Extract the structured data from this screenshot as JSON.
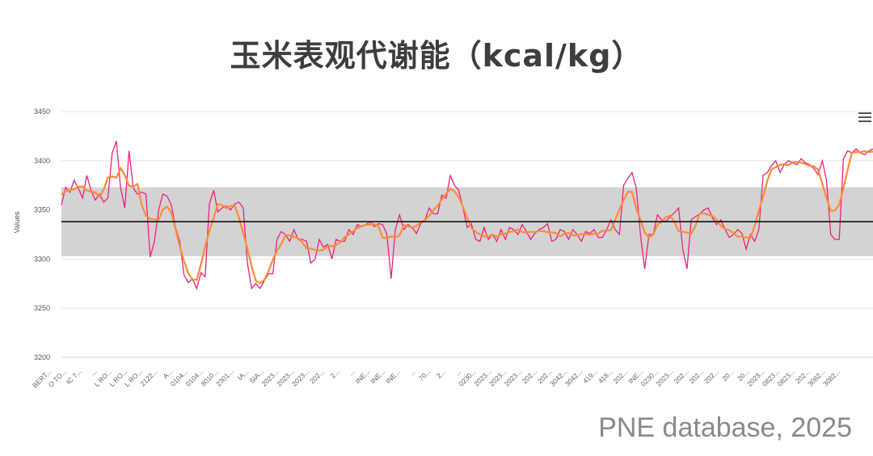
{
  "title": "玉米表观代谢能（kcal/kg）",
  "source": "PNE database, 2025",
  "chart_data": {
    "type": "line",
    "ylabel": "Values",
    "ylim": [
      3200,
      3450
    ],
    "yticks": [
      "3450",
      "3400",
      "3350",
      "3300",
      "3250",
      "3200"
    ],
    "mean_line": 3338,
    "band": [
      3303,
      3373
    ],
    "colors": {
      "raw": "#f0207a",
      "smooth": "#ff8a33",
      "band": "#d3d3d3",
      "mean": "#111111"
    },
    "xticks": [
      "BERT...",
      "O TO...",
      "IC 7...",
      "...",
      "L RO...",
      "L RO...",
      "L RO...",
      "2122...",
      "A...",
      "0104...",
      "0104...",
      "8010...",
      "2301...",
      "IA...",
      "SIA...",
      "2023...",
      "2023...",
      "2023...",
      "202...",
      "2...",
      "...",
      "INE...",
      "INE...",
      "INE...",
      "...",
      "70...",
      "2...",
      "...",
      "0230...",
      "2023...",
      "2023...",
      "2023...",
      "202...",
      "202...",
      "3042...",
      "3042...",
      "419...",
      "418...",
      "202...",
      "INE...",
      "0230...",
      "2023...",
      "202...",
      "202...",
      "202...",
      "20...",
      "20...",
      "2023...",
      "0823...",
      "0823...",
      "202...",
      "3082...",
      "3082..."
    ],
    "series": [
      {
        "name": "",
        "values": [
          3355,
          3373,
          3368,
          3380,
          3372,
          3362,
          3385,
          3370,
          3360,
          3366,
          3358,
          3362,
          3408,
          3420,
          3372,
          3352,
          3410,
          3372,
          3366,
          3368,
          3366,
          3302,
          3318,
          3350,
          3366,
          3364,
          3355,
          3332,
          3318,
          3284,
          3276,
          3280,
          3270,
          3286,
          3282,
          3356,
          3370,
          3348,
          3352,
          3354,
          3350,
          3356,
          3358,
          3352,
          3296,
          3270,
          3275,
          3270,
          3278,
          3285,
          3285,
          3320,
          3328,
          3325,
          3318,
          3330,
          3320,
          3320,
          3318,
          3296,
          3300,
          3320,
          3312,
          3315,
          3300,
          3320,
          3318,
          3318,
          3330,
          3325,
          3335,
          3333,
          3335,
          3338,
          3333,
          3336,
          3335,
          3325,
          3280,
          3330,
          3345,
          3330,
          3335,
          3332,
          3326,
          3336,
          3340,
          3352,
          3346,
          3346,
          3365,
          3362,
          3385,
          3375,
          3370,
          3352,
          3332,
          3336,
          3320,
          3318,
          3332,
          3320,
          3325,
          3318,
          3330,
          3320,
          3332,
          3330,
          3325,
          3335,
          3328,
          3320,
          3326,
          3330,
          3332,
          3336,
          3318,
          3320,
          3330,
          3328,
          3320,
          3330,
          3325,
          3318,
          3328,
          3326,
          3330,
          3322,
          3322,
          3330,
          3340,
          3330,
          3325,
          3375,
          3382,
          3388,
          3372,
          3324,
          3290,
          3325,
          3325,
          3345,
          3340,
          3338,
          3343,
          3347,
          3352,
          3310,
          3290,
          3340,
          3343,
          3346,
          3350,
          3352,
          3342,
          3335,
          3340,
          3330,
          3322,
          3325,
          3330,
          3326,
          3310,
          3325,
          3318,
          3330,
          3385,
          3388,
          3395,
          3400,
          3388,
          3396,
          3400,
          3398,
          3396,
          3402,
          3398,
          3396,
          3392,
          3386,
          3400,
          3380,
          3325,
          3320,
          3320,
          3402,
          3410,
          3408,
          3412,
          3408,
          3406,
          3410,
          3412
        ]
      }
    ]
  }
}
